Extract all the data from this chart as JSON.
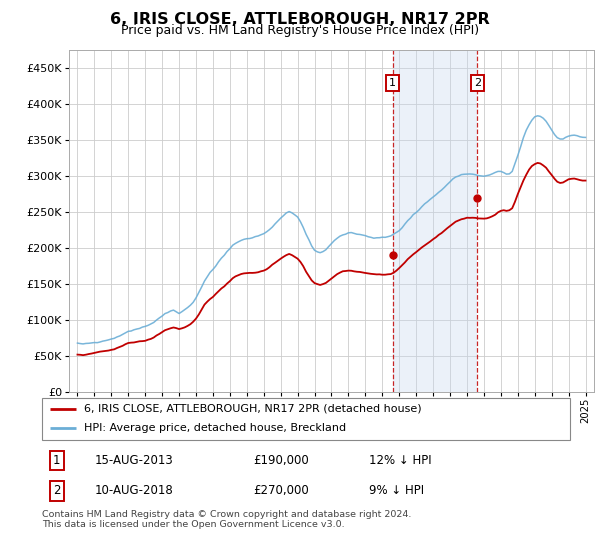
{
  "title": "6, IRIS CLOSE, ATTLEBOROUGH, NR17 2PR",
  "subtitle": "Price paid vs. HM Land Registry's House Price Index (HPI)",
  "legend_line1": "6, IRIS CLOSE, ATTLEBOROUGH, NR17 2PR (detached house)",
  "legend_line2": "HPI: Average price, detached house, Breckland",
  "annotation1_date": "15-AUG-2013",
  "annotation1_price": "£190,000",
  "annotation1_hpi": "12% ↓ HPI",
  "annotation1_year": 2013.62,
  "annotation1_value": 190000,
  "annotation2_date": "10-AUG-2018",
  "annotation2_price": "£270,000",
  "annotation2_hpi": "9% ↓ HPI",
  "annotation2_year": 2018.62,
  "annotation2_value": 270000,
  "footer": "Contains HM Land Registry data © Crown copyright and database right 2024.\nThis data is licensed under the Open Government Licence v3.0.",
  "hpi_color": "#6baed6",
  "price_color": "#c00000",
  "annotation_box_color": "#c00000",
  "shading_color": "#c6d9f0",
  "ylim": [
    0,
    475000
  ],
  "yticks": [
    0,
    50000,
    100000,
    150000,
    200000,
    250000,
    300000,
    350000,
    400000,
    450000
  ],
  "xlim_start": 1994.5,
  "xlim_end": 2025.5,
  "years_hpi": [
    1995.0,
    1995.17,
    1995.33,
    1995.5,
    1995.67,
    1995.83,
    1996.0,
    1996.17,
    1996.33,
    1996.5,
    1996.67,
    1996.83,
    1997.0,
    1997.17,
    1997.33,
    1997.5,
    1997.67,
    1997.83,
    1998.0,
    1998.17,
    1998.33,
    1998.5,
    1998.67,
    1998.83,
    1999.0,
    1999.17,
    1999.33,
    1999.5,
    1999.67,
    1999.83,
    2000.0,
    2000.17,
    2000.33,
    2000.5,
    2000.67,
    2000.83,
    2001.0,
    2001.17,
    2001.33,
    2001.5,
    2001.67,
    2001.83,
    2002.0,
    2002.17,
    2002.33,
    2002.5,
    2002.67,
    2002.83,
    2003.0,
    2003.17,
    2003.33,
    2003.5,
    2003.67,
    2003.83,
    2004.0,
    2004.17,
    2004.33,
    2004.5,
    2004.67,
    2004.83,
    2005.0,
    2005.17,
    2005.33,
    2005.5,
    2005.67,
    2005.83,
    2006.0,
    2006.17,
    2006.33,
    2006.5,
    2006.67,
    2006.83,
    2007.0,
    2007.17,
    2007.33,
    2007.5,
    2007.67,
    2007.83,
    2008.0,
    2008.17,
    2008.33,
    2008.5,
    2008.67,
    2008.83,
    2009.0,
    2009.17,
    2009.33,
    2009.5,
    2009.67,
    2009.83,
    2010.0,
    2010.17,
    2010.33,
    2010.5,
    2010.67,
    2010.83,
    2011.0,
    2011.17,
    2011.33,
    2011.5,
    2011.67,
    2011.83,
    2012.0,
    2012.17,
    2012.33,
    2012.5,
    2012.67,
    2012.83,
    2013.0,
    2013.17,
    2013.33,
    2013.5,
    2013.67,
    2013.83,
    2014.0,
    2014.17,
    2014.33,
    2014.5,
    2014.67,
    2014.83,
    2015.0,
    2015.17,
    2015.33,
    2015.5,
    2015.67,
    2015.83,
    2016.0,
    2016.17,
    2016.33,
    2016.5,
    2016.67,
    2016.83,
    2017.0,
    2017.17,
    2017.33,
    2017.5,
    2017.67,
    2017.83,
    2018.0,
    2018.17,
    2018.33,
    2018.5,
    2018.67,
    2018.83,
    2019.0,
    2019.17,
    2019.33,
    2019.5,
    2019.67,
    2019.83,
    2020.0,
    2020.17,
    2020.33,
    2020.5,
    2020.67,
    2020.83,
    2021.0,
    2021.17,
    2021.33,
    2021.5,
    2021.67,
    2021.83,
    2022.0,
    2022.17,
    2022.33,
    2022.5,
    2022.67,
    2022.83,
    2023.0,
    2023.17,
    2023.33,
    2023.5,
    2023.67,
    2023.83,
    2024.0,
    2024.17,
    2024.33,
    2024.5,
    2024.67,
    2024.83,
    2025.0
  ],
  "hpi_vals": [
    68000,
    67500,
    67000,
    67500,
    68000,
    68500,
    69000,
    69500,
    70000,
    71000,
    72000,
    73000,
    74000,
    75000,
    77000,
    79000,
    81000,
    83000,
    85000,
    86000,
    87000,
    88000,
    89000,
    90000,
    91000,
    93000,
    95000,
    98000,
    101000,
    104000,
    107000,
    110000,
    112000,
    114000,
    116000,
    114000,
    112000,
    114000,
    116000,
    119000,
    122000,
    126000,
    132000,
    140000,
    148000,
    157000,
    163000,
    168000,
    172000,
    177000,
    182000,
    187000,
    191000,
    196000,
    200000,
    205000,
    208000,
    210000,
    212000,
    213000,
    214000,
    215000,
    216000,
    217000,
    218000,
    220000,
    222000,
    225000,
    228000,
    232000,
    236000,
    240000,
    244000,
    247000,
    250000,
    252000,
    250000,
    247000,
    244000,
    238000,
    230000,
    220000,
    212000,
    204000,
    198000,
    196000,
    195000,
    196000,
    198000,
    202000,
    206000,
    210000,
    213000,
    216000,
    218000,
    219000,
    220000,
    220000,
    219000,
    218000,
    218000,
    217000,
    216000,
    215000,
    214000,
    213000,
    213000,
    213000,
    213000,
    213000,
    214000,
    215000,
    217000,
    219000,
    222000,
    226000,
    231000,
    236000,
    240000,
    244000,
    247000,
    251000,
    255000,
    259000,
    262000,
    265000,
    268000,
    271000,
    274000,
    277000,
    281000,
    285000,
    289000,
    293000,
    296000,
    298000,
    300000,
    301000,
    302000,
    302000,
    302000,
    301000,
    300000,
    300000,
    300000,
    301000,
    302000,
    304000,
    306000,
    308000,
    308000,
    307000,
    305000,
    305000,
    308000,
    318000,
    330000,
    342000,
    354000,
    364000,
    372000,
    378000,
    382000,
    384000,
    383000,
    380000,
    376000,
    370000,
    364000,
    358000,
    354000,
    352000,
    352000,
    354000,
    356000,
    357000,
    357000,
    356000,
    355000,
    354000,
    354000
  ],
  "price_vals": [
    52000,
    51500,
    51000,
    51500,
    52000,
    52500,
    53000,
    53500,
    54000,
    54800,
    55600,
    56400,
    57200,
    58000,
    59500,
    61000,
    62500,
    64000,
    65500,
    66000,
    66500,
    67000,
    67500,
    68000,
    68500,
    70000,
    71500,
    73500,
    76000,
    78500,
    81000,
    83000,
    84500,
    86000,
    87000,
    86000,
    84500,
    86000,
    87500,
    89500,
    92000,
    95000,
    99500,
    105500,
    111500,
    118500,
    123000,
    126500,
    129500,
    133500,
    137000,
    141000,
    144000,
    148000,
    151000,
    154500,
    157000,
    158500,
    160000,
    161000,
    161500,
    162000,
    162500,
    163000,
    163500,
    164500,
    165500,
    167500,
    170000,
    173000,
    176000,
    179000,
    182000,
    184500,
    187000,
    188500,
    187000,
    184500,
    182000,
    177500,
    171500,
    164000,
    158000,
    152000,
    148000,
    146500,
    146000,
    147000,
    148500,
    151500,
    155000,
    158000,
    160500,
    162500,
    164000,
    164500,
    165000,
    165000,
    164500,
    164000,
    164000,
    163500,
    163000,
    162500,
    162000,
    161500,
    161500,
    161500,
    161500,
    161500,
    162000,
    163000,
    165000,
    167500,
    171000,
    175000,
    179000,
    183500,
    187000,
    190000,
    193000,
    196000,
    199000,
    202000,
    205000,
    208000,
    211000,
    214000,
    217000,
    220000,
    223500,
    227000,
    230000,
    233000,
    236000,
    238000,
    240000,
    241000,
    242000,
    242000,
    242000,
    241500,
    241000,
    241000,
    241500,
    242000,
    243000,
    245000,
    247000,
    250000,
    252000,
    253000,
    252000,
    253000,
    256000,
    264000,
    275000,
    285000,
    294000,
    302000,
    309000,
    314000,
    317000,
    319000,
    318000,
    315000,
    312000,
    307000,
    302000,
    297000,
    293000,
    291000,
    292000,
    294000,
    296000,
    297000,
    297000,
    296000,
    295000,
    294000,
    294000
  ]
}
